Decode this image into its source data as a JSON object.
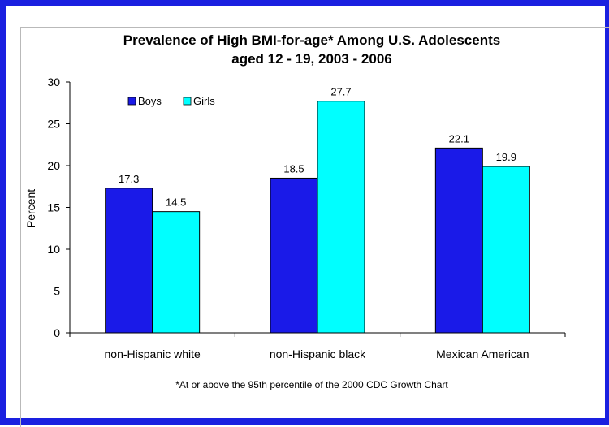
{
  "chart_data": {
    "type": "bar",
    "title": [
      "Prevalence of High BMI-for-age* Among U.S. Adolescents",
      "aged 12 - 19, 2003 - 2006"
    ],
    "ylabel": "Percent",
    "xlabel": "",
    "ylim": [
      0,
      30
    ],
    "yticks": [
      0,
      5,
      10,
      15,
      20,
      25,
      30
    ],
    "categories": [
      "non-Hispanic white",
      "non-Hispanic black",
      "Mexican American"
    ],
    "series": [
      {
        "name": "Boys",
        "color": "#1a1ae8",
        "values": [
          17.3,
          18.5,
          22.1
        ],
        "labels": [
          "17.3",
          "18.5",
          "22.1"
        ]
      },
      {
        "name": "Girls",
        "color": "#00ffff",
        "values": [
          14.5,
          27.7,
          19.9
        ],
        "labels": [
          "14.5",
          "27.7",
          "19.9"
        ]
      }
    ],
    "legend_position": "top-left",
    "grid": false,
    "footnote": "*At or above the 95th percentile of the 2000 CDC Growth Chart"
  }
}
